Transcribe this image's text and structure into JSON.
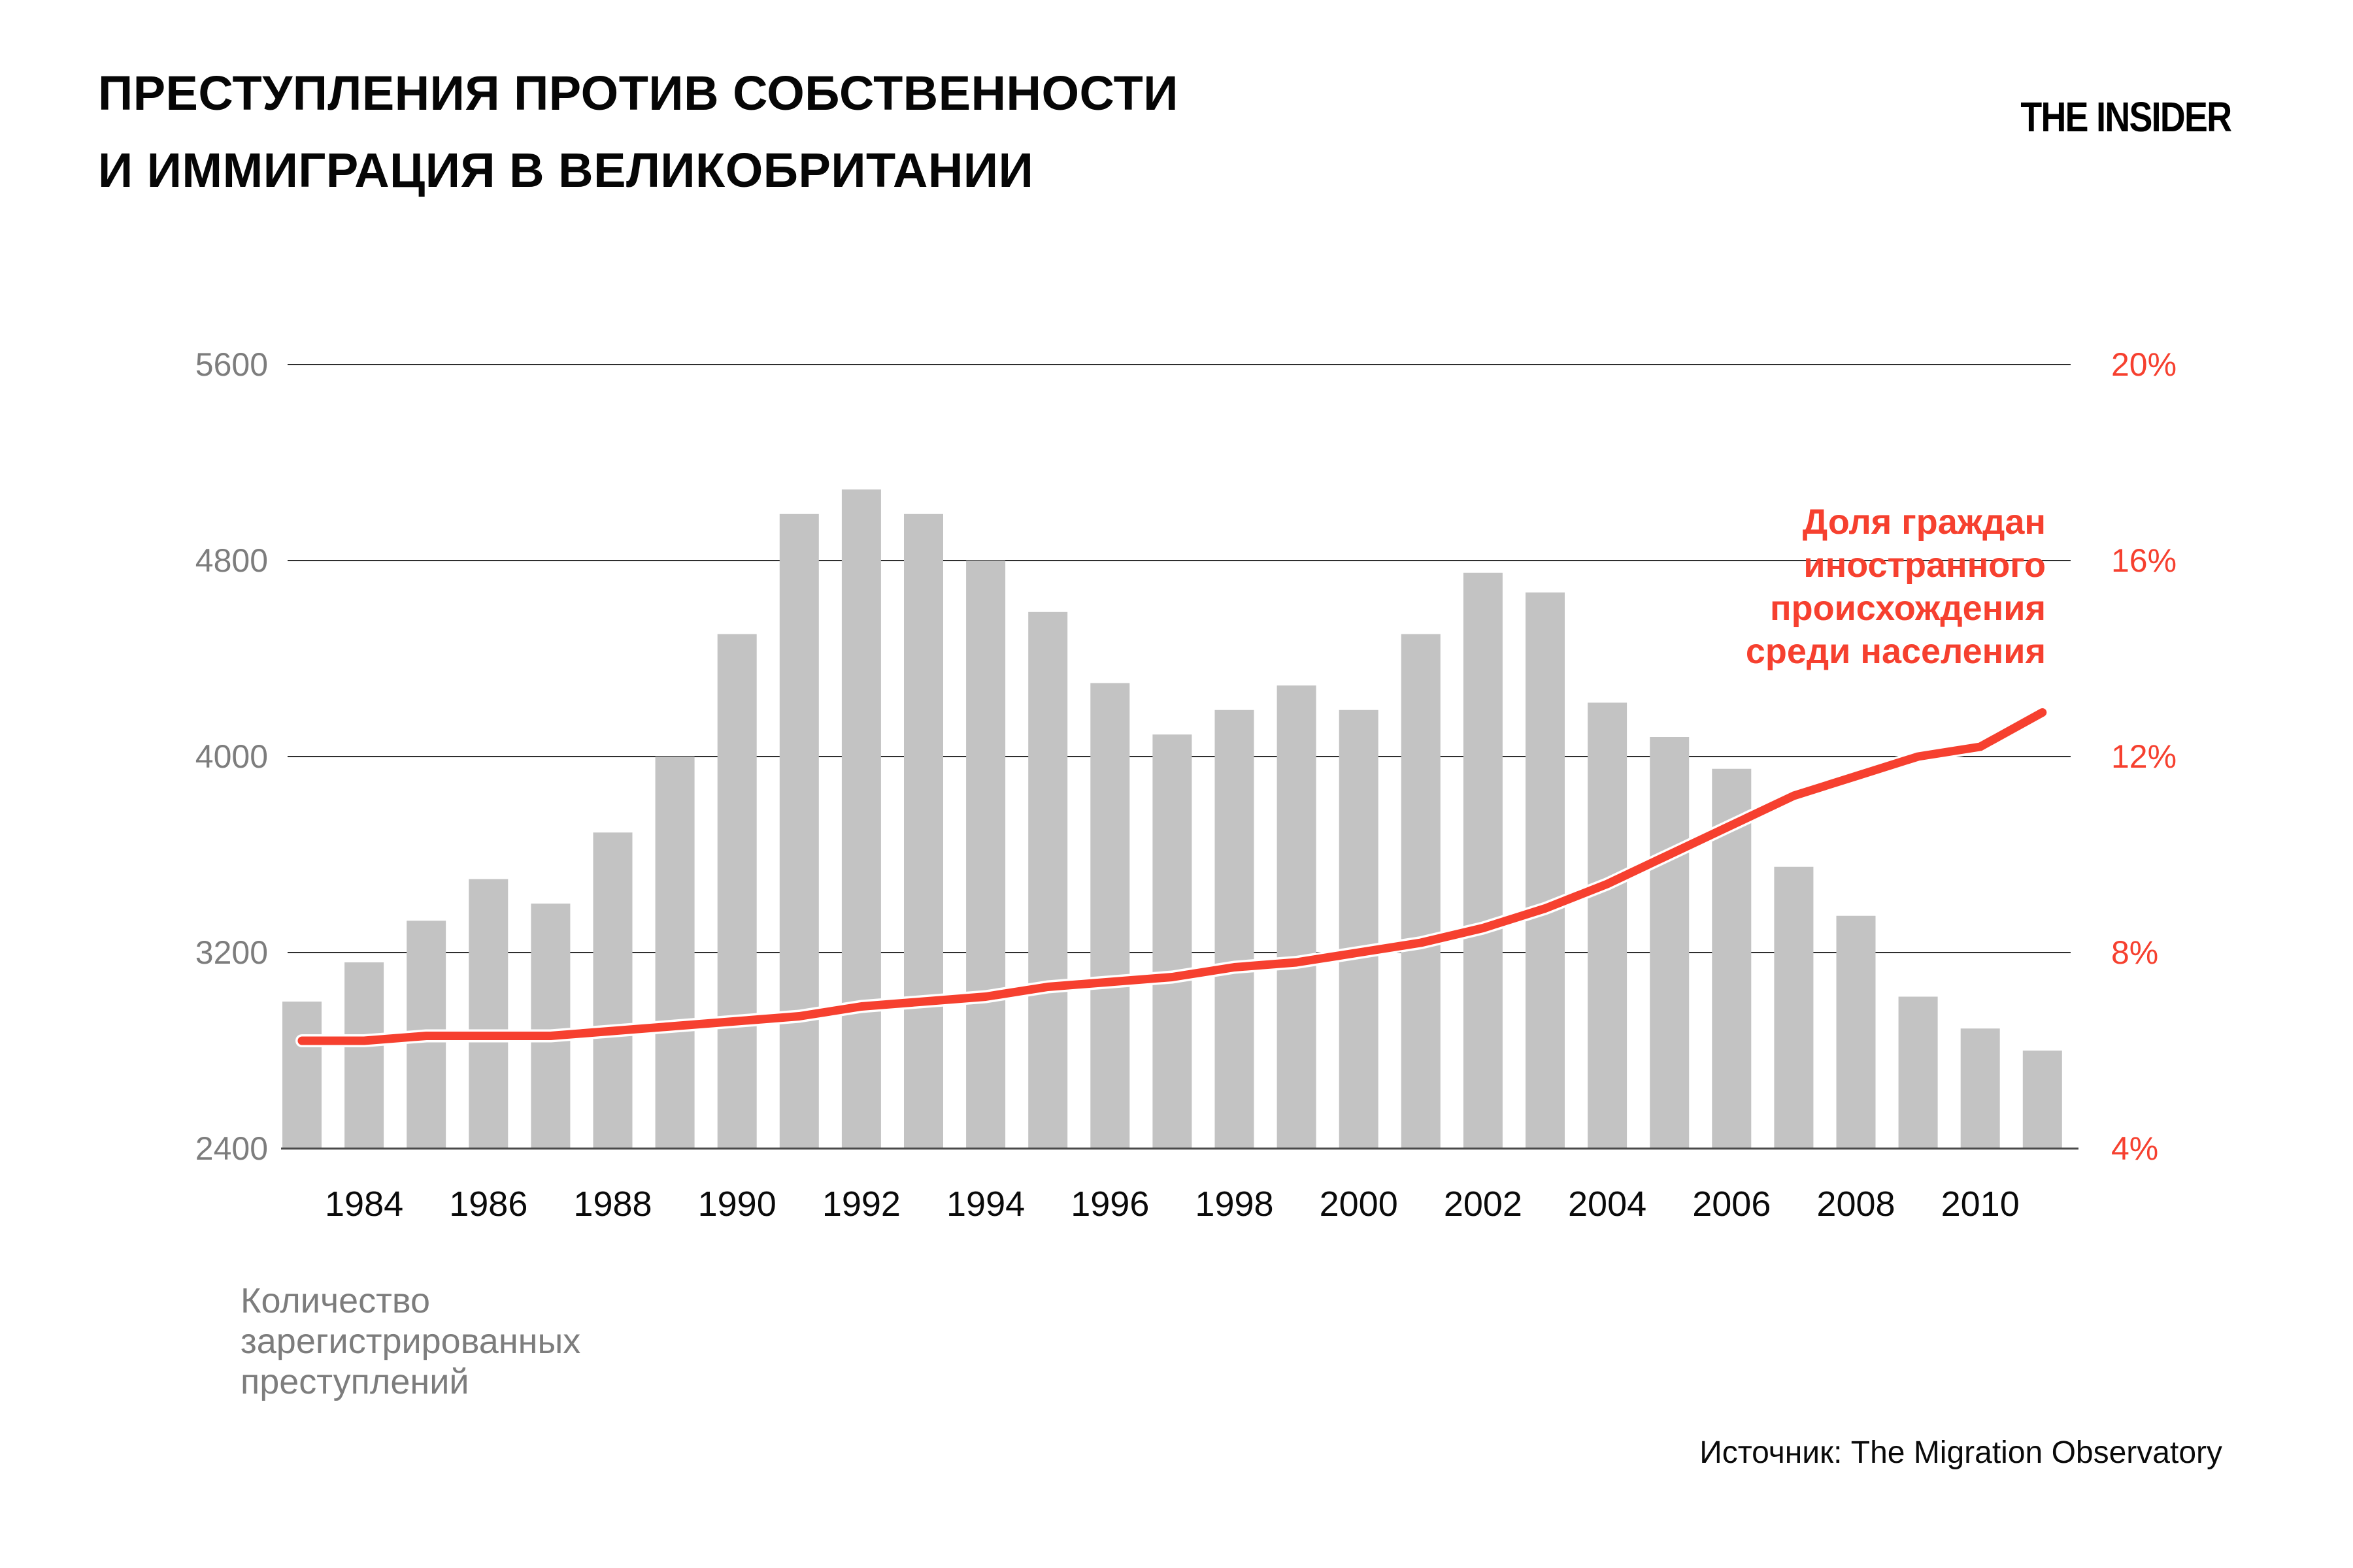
{
  "header": {
    "title_line1": "ПРЕСТУПЛЕНИЯ ПРОТИВ СОБСТВЕННОСТИ",
    "title_line2": "И ИММИГРАЦИЯ В ВЕЛИКОБРИТАНИИ",
    "logo": "THE INSIDER"
  },
  "footer": {
    "source": "Источник: The Migration Observatory"
  },
  "labels": {
    "bar_series_caption_lines": [
      "Количество",
      "зарегистрированных",
      "преступлений"
    ],
    "line_series_caption_lines": [
      "Доля граждан",
      "иностранного",
      "происхождения",
      "среди населения"
    ]
  },
  "colors": {
    "accent_red": "#f6402f",
    "bar_gray": "#c3c3c3",
    "axis_label_gray": "#7d7d7d",
    "grid_line": "#2e2e2e",
    "axis_line": "#4a4a4a",
    "text_black": "#0a0a0a",
    "line_halo": "#ffffff"
  },
  "chart_data": {
    "type": "bar+line",
    "title": "Преступления против собственности и иммиграция в Великобритании",
    "x": [
      1983,
      1984,
      1985,
      1986,
      1987,
      1988,
      1989,
      1990,
      1991,
      1992,
      1993,
      1994,
      1995,
      1996,
      1997,
      1998,
      1999,
      2000,
      2001,
      2002,
      2003,
      2004,
      2005,
      2006,
      2007,
      2008,
      2009,
      2010,
      2011
    ],
    "series": [
      {
        "name": "Количество зарегистрированных преступлений",
        "type": "bar",
        "axis": "left",
        "values": [
          3000,
          3160,
          3330,
          3500,
          3400,
          3690,
          4000,
          4500,
          4990,
          5090,
          4990,
          4800,
          4590,
          4300,
          4090,
          4190,
          4290,
          4190,
          4500,
          4750,
          4670,
          4220,
          4080,
          3950,
          3550,
          3350,
          3020,
          2890,
          2800
        ]
      },
      {
        "name": "Доля граждан иностранного происхождения среди населения",
        "type": "line",
        "axis": "right",
        "values": [
          6.2,
          6.2,
          6.3,
          6.3,
          6.3,
          6.4,
          6.5,
          6.6,
          6.7,
          6.9,
          7.0,
          7.1,
          7.3,
          7.4,
          7.5,
          7.7,
          7.8,
          8.0,
          8.2,
          8.5,
          8.9,
          9.4,
          10.0,
          10.6,
          11.2,
          11.6,
          12.0,
          12.2,
          12.9
        ]
      }
    ],
    "left_axis": {
      "range": [
        2400,
        5600
      ],
      "ticks": [
        "5600",
        "4800",
        "4000",
        "3200",
        "2400"
      ]
    },
    "right_axis": {
      "range": [
        4,
        20
      ],
      "unit": "%",
      "ticks": [
        "20%",
        "16%",
        "12%",
        "8%",
        "4%"
      ]
    },
    "x_tick_labels": [
      "1984",
      "1986",
      "1988",
      "1990",
      "1992",
      "1994",
      "1996",
      "1998",
      "2000",
      "2002",
      "2004",
      "2006",
      "2008",
      "2010"
    ],
    "grid": true,
    "legend_position": "annotation-right"
  }
}
